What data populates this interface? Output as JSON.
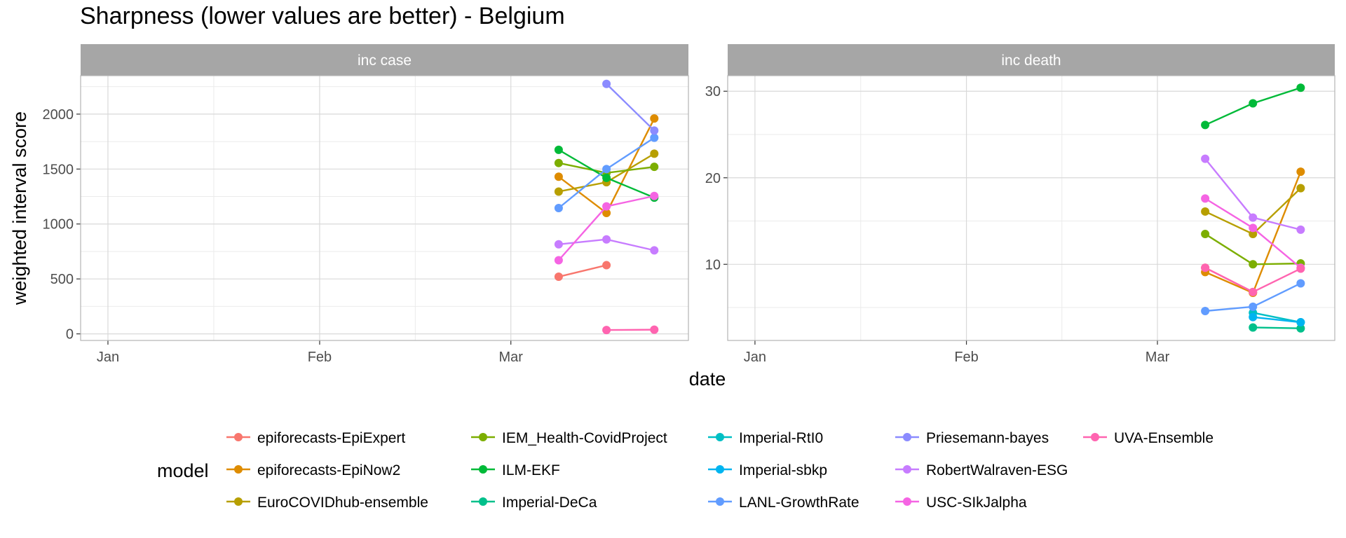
{
  "title": "Sharpness (lower values are better) - Belgium",
  "colors": {
    "epiforecasts-EpiExpert": "#F8766D",
    "epiforecasts-EpiNow2": "#DE8C00",
    "EuroCOVIDhub-ensemble": "#B79F00",
    "IEM_Health-CovidProject": "#7CAE00",
    "ILM-EKF": "#00BA38",
    "Imperial-DeCa": "#00C08B",
    "Imperial-RtI0": "#00BFC4",
    "Imperial-sbkp": "#00B4F0",
    "LANL-GrowthRate": "#619CFF",
    "Priesemann-bayes": "#8B8BFF",
    "RobertWalraven-ESG": "#C77CFF",
    "USC-SIkJalpha": "#F564E3",
    "UVA-Ensemble": "#FF64B0"
  },
  "chart_data": {
    "type": "line",
    "xlabel": "date",
    "ylabel": "weighted interval score",
    "legend_title": "model",
    "legend_position": "bottom",
    "grid": true,
    "x_ticks": [
      "Jan",
      "Feb",
      "Mar"
    ],
    "x_tick_dates": [
      "2021-01-01",
      "2021-02-01",
      "2021-03-01"
    ],
    "xlim": [
      "2020-12-28",
      "2021-03-27"
    ],
    "panels": [
      {
        "strip": "inc case",
        "ylim": [
          -60,
          2350
        ],
        "y_ticks": [
          0,
          500,
          1000,
          1500,
          2000
        ],
        "series": [
          {
            "name": "epiforecasts-EpiExpert",
            "points": [
              [
                "2021-03-08",
                520
              ],
              [
                "2021-03-15",
                625
              ]
            ]
          },
          {
            "name": "epiforecasts-EpiNow2",
            "points": [
              [
                "2021-03-08",
                1430
              ],
              [
                "2021-03-15",
                1100
              ],
              [
                "2021-03-22",
                1960
              ]
            ]
          },
          {
            "name": "EuroCOVIDhub-ensemble",
            "points": [
              [
                "2021-03-08",
                1295
              ],
              [
                "2021-03-15",
                1380
              ],
              [
                "2021-03-22",
                1640
              ]
            ]
          },
          {
            "name": "IEM_Health-CovidProject",
            "points": [
              [
                "2021-03-08",
                1555
              ],
              [
                "2021-03-15",
                1465
              ],
              [
                "2021-03-22",
                1520
              ]
            ]
          },
          {
            "name": "ILM-EKF",
            "points": [
              [
                "2021-03-08",
                1675
              ],
              [
                "2021-03-15",
                1420
              ],
              [
                "2021-03-22",
                1240
              ]
            ]
          },
          {
            "name": "LANL-GrowthRate",
            "points": [
              [
                "2021-03-08",
                1145
              ],
              [
                "2021-03-15",
                1500
              ],
              [
                "2021-03-22",
                1785
              ]
            ]
          },
          {
            "name": "Priesemann-bayes",
            "points": [
              [
                "2021-03-15",
                2275
              ],
              [
                "2021-03-22",
                1850
              ]
            ]
          },
          {
            "name": "RobertWalraven-ESG",
            "points": [
              [
                "2021-03-08",
                815
              ],
              [
                "2021-03-15",
                860
              ],
              [
                "2021-03-22",
                760
              ]
            ]
          },
          {
            "name": "USC-SIkJalpha",
            "points": [
              [
                "2021-03-08",
                670
              ],
              [
                "2021-03-15",
                1160
              ],
              [
                "2021-03-22",
                1255
              ]
            ]
          },
          {
            "name": "UVA-Ensemble",
            "points": [
              [
                "2021-03-15",
                35
              ],
              [
                "2021-03-22",
                38
              ]
            ]
          }
        ]
      },
      {
        "strip": "inc death",
        "ylim": [
          1.2,
          31.8
        ],
        "y_ticks": [
          10,
          20,
          30
        ],
        "series": [
          {
            "name": "epiforecasts-EpiExpert",
            "points": [
              [
                "2021-03-08",
                9.6
              ],
              [
                "2021-03-15",
                6.8
              ]
            ]
          },
          {
            "name": "epiforecasts-EpiNow2",
            "points": [
              [
                "2021-03-08",
                9.1
              ],
              [
                "2021-03-15",
                6.7
              ],
              [
                "2021-03-22",
                20.7
              ]
            ]
          },
          {
            "name": "EuroCOVIDhub-ensemble",
            "points": [
              [
                "2021-03-08",
                16.1
              ],
              [
                "2021-03-15",
                13.5
              ],
              [
                "2021-03-22",
                18.8
              ]
            ]
          },
          {
            "name": "IEM_Health-CovidProject",
            "points": [
              [
                "2021-03-08",
                13.5
              ],
              [
                "2021-03-15",
                10.0
              ],
              [
                "2021-03-22",
                10.1
              ]
            ]
          },
          {
            "name": "ILM-EKF",
            "points": [
              [
                "2021-03-08",
                26.1
              ],
              [
                "2021-03-15",
                28.6
              ],
              [
                "2021-03-22",
                30.4
              ]
            ]
          },
          {
            "name": "Imperial-DeCa",
            "points": [
              [
                "2021-03-15",
                2.7
              ],
              [
                "2021-03-22",
                2.6
              ]
            ]
          },
          {
            "name": "Imperial-RtI0",
            "points": [
              [
                "2021-03-15",
                4.4
              ],
              [
                "2021-03-22",
                3.3
              ]
            ]
          },
          {
            "name": "Imperial-sbkp",
            "points": [
              [
                "2021-03-15",
                3.9
              ],
              [
                "2021-03-22",
                3.3
              ]
            ]
          },
          {
            "name": "LANL-GrowthRate",
            "points": [
              [
                "2021-03-08",
                4.6
              ],
              [
                "2021-03-15",
                5.1
              ],
              [
                "2021-03-22",
                7.8
              ]
            ]
          },
          {
            "name": "RobertWalraven-ESG",
            "points": [
              [
                "2021-03-08",
                22.2
              ],
              [
                "2021-03-15",
                15.4
              ],
              [
                "2021-03-22",
                14.0
              ]
            ]
          },
          {
            "name": "USC-SIkJalpha",
            "points": [
              [
                "2021-03-08",
                17.6
              ],
              [
                "2021-03-15",
                14.2
              ],
              [
                "2021-03-22",
                9.6
              ]
            ]
          },
          {
            "name": "UVA-Ensemble",
            "points": [
              [
                "2021-03-08",
                9.6
              ],
              [
                "2021-03-15",
                6.8
              ],
              [
                "2021-03-22",
                9.5
              ]
            ]
          }
        ]
      }
    ],
    "legend": [
      "epiforecasts-EpiExpert",
      "epiforecasts-EpiNow2",
      "EuroCOVIDhub-ensemble",
      "IEM_Health-CovidProject",
      "ILM-EKF",
      "Imperial-DeCa",
      "Imperial-RtI0",
      "Imperial-sbkp",
      "LANL-GrowthRate",
      "Priesemann-bayes",
      "RobertWalraven-ESG",
      "USC-SIkJalpha",
      "UVA-Ensemble"
    ]
  }
}
